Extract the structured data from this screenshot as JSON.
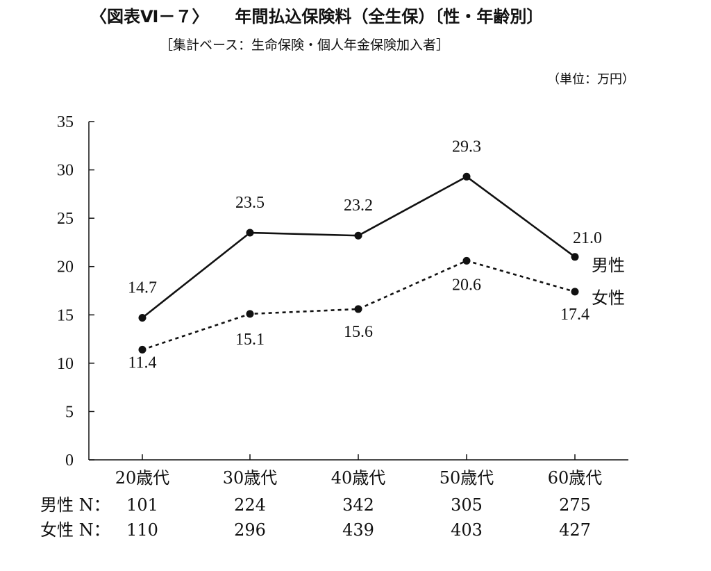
{
  "header": {
    "figure_no": "〈図表Ⅵ－７〉",
    "title": "年間払込保険料（全生保）〔性・年齢別〕",
    "subtitle": "［集計ベース：生命保険・個人年金保険加入者］",
    "unit": "（単位：万円）"
  },
  "chart_data": {
    "type": "line",
    "categories": [
      "20歳代",
      "30歳代",
      "40歳代",
      "50歳代",
      "60歳代"
    ],
    "series": [
      {
        "name": "男性",
        "values": [
          14.7,
          23.5,
          23.2,
          29.3,
          21.0
        ],
        "labels": [
          "14.7",
          "23.5",
          "23.2",
          "29.3",
          "21.0"
        ],
        "line_style": "solid"
      },
      {
        "name": "女性",
        "values": [
          11.4,
          15.1,
          15.6,
          20.6,
          17.4
        ],
        "labels": [
          "11.4",
          "15.1",
          "15.6",
          "20.6",
          "17.4"
        ],
        "line_style": "dashed"
      }
    ],
    "ylim": [
      0,
      35
    ],
    "yticks": [
      0,
      5,
      10,
      15,
      20,
      25,
      30,
      35
    ],
    "grid": false,
    "color": "#111111"
  },
  "sample_sizes": {
    "rows": [
      {
        "label": "男性 N：",
        "values": [
          "101",
          "224",
          "342",
          "305",
          "275"
        ]
      },
      {
        "label": "女性 N：",
        "values": [
          "110",
          "296",
          "439",
          "403",
          "427"
        ]
      }
    ]
  }
}
